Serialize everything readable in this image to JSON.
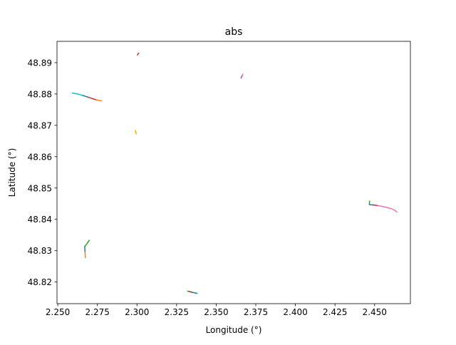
{
  "chart_data": {
    "type": "line",
    "title": "abs",
    "xlabel": "Longitude (°)",
    "ylabel": "Latitude (°)",
    "xlim": [
      2.2495,
      2.4726
    ],
    "ylim": [
      48.8131,
      48.8968
    ],
    "x_ticks": [
      "2.250",
      "2.275",
      "2.300",
      "2.325",
      "2.350",
      "2.375",
      "2.400",
      "2.425",
      "2.450"
    ],
    "y_ticks": [
      "48.82",
      "48.83",
      "48.84",
      "48.85",
      "48.86",
      "48.87",
      "48.88",
      "48.89"
    ],
    "grid": false,
    "legend": "none",
    "series": [
      {
        "color": "#17becf",
        "x": [
          2.2592,
          2.2625,
          2.266
        ],
        "y": [
          48.8803,
          48.88,
          48.8795
        ]
      },
      {
        "color": "#1f77b4",
        "x": [
          2.266,
          2.269
        ],
        "y": [
          48.8795,
          48.879
        ]
      },
      {
        "color": "#8c564b",
        "x": [
          2.269,
          2.272
        ],
        "y": [
          48.879,
          48.8785
        ]
      },
      {
        "color": "#d62728",
        "x": [
          2.272,
          2.2745
        ],
        "y": [
          48.8785,
          48.8781
        ]
      },
      {
        "color": "#ff7f0e",
        "x": [
          2.2745,
          2.2775
        ],
        "y": [
          48.8781,
          48.8778
        ]
      },
      {
        "color": "#d62728",
        "x": [
          2.3003,
          2.301
        ],
        "y": [
          48.8925,
          48.893
        ]
      },
      {
        "color": "#e3b505",
        "x": [
          2.299,
          2.2995
        ],
        "y": [
          48.8683,
          48.8673
        ]
      },
      {
        "color": "#e377c2",
        "x": [
          2.366,
          2.3668
        ],
        "y": [
          48.8853,
          48.8863
        ]
      },
      {
        "color": "#9467bd",
        "x": [
          2.3657,
          2.3663
        ],
        "y": [
          48.8851,
          48.8858
        ]
      },
      {
        "color": "#2ca02c",
        "x": [
          2.4467,
          2.4468
        ],
        "y": [
          48.8448,
          48.8458
        ]
      },
      {
        "color": "#1f77b4",
        "x": [
          2.4468,
          2.449
        ],
        "y": [
          48.8447,
          48.8446
        ]
      },
      {
        "color": "#d62728",
        "x": [
          2.449,
          2.452
        ],
        "y": [
          48.8446,
          48.8444
        ]
      },
      {
        "color": "#e377c2",
        "x": [
          2.452,
          2.456,
          2.46,
          2.4625,
          2.464
        ],
        "y": [
          48.8444,
          48.844,
          48.8435,
          48.843,
          48.8423
        ]
      },
      {
        "color": "#1f77b4",
        "x": [
          2.267,
          2.2672
        ],
        "y": [
          48.8313,
          48.8295
        ]
      },
      {
        "color": "#ff7f0e",
        "x": [
          2.2672,
          2.2674
        ],
        "y": [
          48.8295,
          48.8278
        ]
      },
      {
        "color": "#2ca02c",
        "x": [
          2.267,
          2.2685,
          2.2698
        ],
        "y": [
          48.8313,
          48.8323,
          48.8333
        ]
      },
      {
        "color": "#2ca02c",
        "x": [
          2.332,
          2.334
        ],
        "y": [
          48.8171,
          48.8168
        ]
      },
      {
        "color": "#d62728",
        "x": [
          2.333,
          2.335
        ],
        "y": [
          48.817,
          48.8167
        ]
      },
      {
        "color": "#1f77b4",
        "x": [
          2.335,
          2.3378
        ],
        "y": [
          48.8167,
          48.8164
        ]
      }
    ]
  }
}
